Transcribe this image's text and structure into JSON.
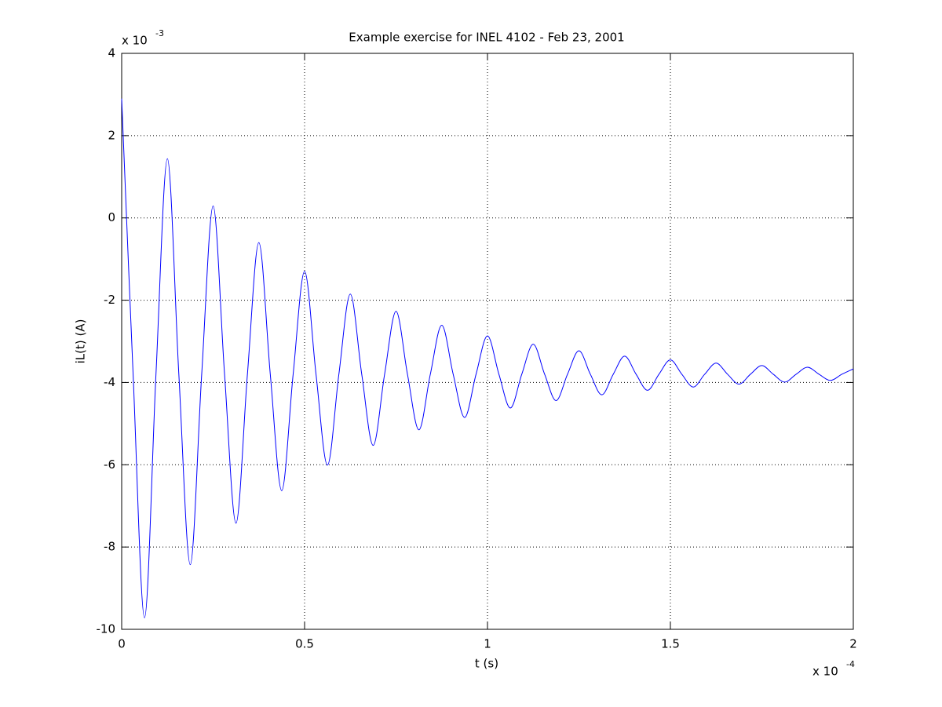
{
  "chart_data": {
    "type": "line",
    "title": "Example exercise for INEL 4102 - Feb 23, 2001",
    "xlabel": "t (s)",
    "ylabel": "iL(t) (A)",
    "x_offset_text": {
      "base": "x 10",
      "exponent": "-4"
    },
    "y_offset_text": {
      "base": "x 10",
      "exponent": "-3"
    },
    "x": [
      0,
      0.03125,
      0.0625,
      0.09375,
      0.125,
      0.15625,
      0.1875,
      0.21875,
      0.25,
      0.28125,
      0.3125,
      0.34375,
      0.375,
      0.40625,
      0.4375,
      0.46875,
      0.5,
      0.53125,
      0.5625,
      0.59375,
      0.625,
      0.65625,
      0.6875,
      0.71875,
      0.75,
      0.78125,
      0.8125,
      0.84375,
      0.875,
      0.90625,
      0.9375,
      0.96875,
      1,
      1.03125,
      1.0625,
      1.09375,
      1.125,
      1.15625,
      1.1875,
      1.21875,
      1.25,
      1.28125,
      1.3125,
      1.34375,
      1.375,
      1.40625,
      1.4375,
      1.46875,
      1.5,
      1.53125,
      1.5625,
      1.59375,
      1.625,
      1.65625,
      1.6875,
      1.71875,
      1.75,
      1.78125,
      1.8125,
      1.84375,
      1.875,
      1.90625,
      1.9375,
      1.96875,
      2
    ],
    "series": [
      {
        "color": "#0000ff",
        "values": [
          2.9,
          -3.8,
          -9.72,
          -3.8,
          1.44,
          -3.8,
          -8.43,
          -3.8,
          0.29,
          -3.8,
          -7.42,
          -3.8,
          -0.6,
          -3.8,
          -6.63,
          -3.8,
          -1.3,
          -3.8,
          -6.01,
          -3.8,
          -1.85,
          -3.8,
          -5.53,
          -3.8,
          -2.27,
          -3.8,
          -5.15,
          -3.8,
          -2.61,
          -3.8,
          -4.85,
          -3.8,
          -2.87,
          -3.8,
          -4.62,
          -3.8,
          -3.07,
          -3.8,
          -4.44,
          -3.8,
          -3.23,
          -3.8,
          -4.3,
          -3.8,
          -3.36,
          -3.8,
          -4.19,
          -3.8,
          -3.45,
          -3.8,
          -4.11,
          -3.8,
          -3.53,
          -3.8,
          -4.04,
          -3.8,
          -3.59,
          -3.8,
          -3.99,
          -3.8,
          -3.63,
          -3.8,
          -3.95,
          -3.8,
          -3.67
        ]
      }
    ],
    "xlim": [
      0,
      2
    ],
    "ylim": [
      -10,
      4
    ],
    "xticks": [
      0,
      0.5,
      1,
      1.5,
      2
    ],
    "yticks": [
      -10,
      -8,
      -6,
      -4,
      -2,
      0,
      2,
      4
    ],
    "grid": true
  }
}
